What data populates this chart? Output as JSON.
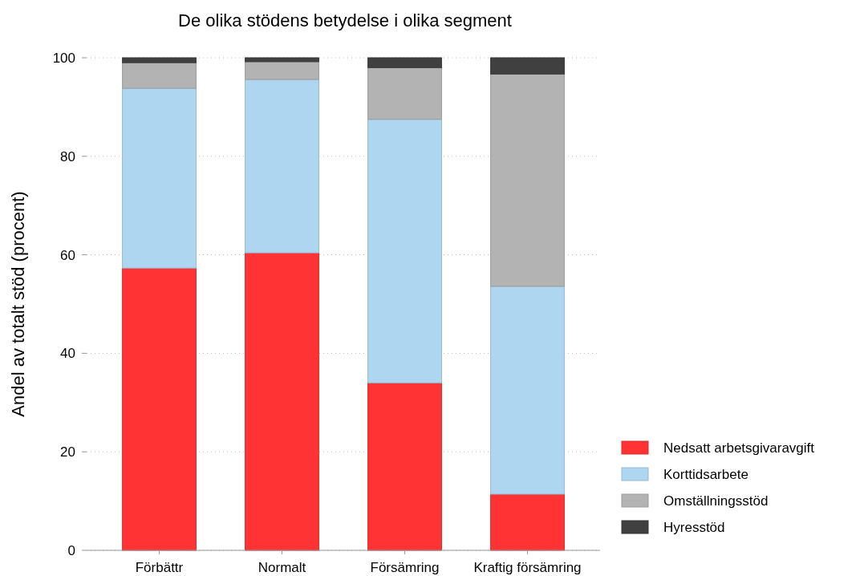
{
  "chart_data": {
    "type": "bar",
    "title": "De olika stödens betydelse i olika segment",
    "ylabel": "Andel av totalt stöd (procent)",
    "categories": [
      "Förbättr",
      "Normalt",
      "Försämring",
      "Kraftig försämring"
    ],
    "stacked": true,
    "ylim": [
      0,
      100
    ],
    "yticks": [
      0,
      20,
      40,
      60,
      80,
      100
    ],
    "grid": "y",
    "legend": "bottom right",
    "series": [
      {
        "name": "Nedsatt arbetsgivaravgift",
        "color": "#ff3333",
        "values": [
          57.3,
          60.4,
          34.0,
          11.4
        ]
      },
      {
        "name": "Korttidsarbete",
        "color": "#aed6f1",
        "values": [
          36.5,
          35.2,
          53.5,
          42.2
        ]
      },
      {
        "name": "Omställningsstöd",
        "color": "#b3b3b3",
        "values": [
          5.2,
          3.6,
          10.5,
          43.1
        ]
      },
      {
        "name": "Hyresstöd",
        "color": "#404040",
        "values": [
          1.0,
          0.8,
          2.0,
          3.3
        ]
      }
    ]
  }
}
